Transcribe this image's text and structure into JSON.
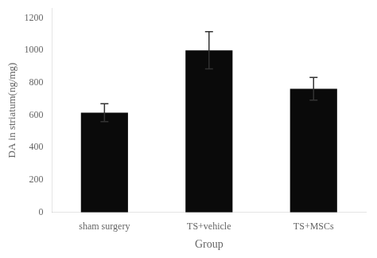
{
  "chart_data": {
    "type": "bar",
    "categories": [
      "sham surgery",
      "TS+vehicle",
      "TS+MSCs"
    ],
    "values": [
      615,
      1000,
      762
    ],
    "errors": [
      55,
      115,
      70
    ],
    "color": "#0a0a0a",
    "xlabel": "Group",
    "ylabel": "DA in striatum(ng/mg)",
    "ylim": [
      0,
      1260
    ],
    "yticks": [
      0,
      200,
      400,
      600,
      800,
      1000,
      1200
    ],
    "grid": false
  }
}
